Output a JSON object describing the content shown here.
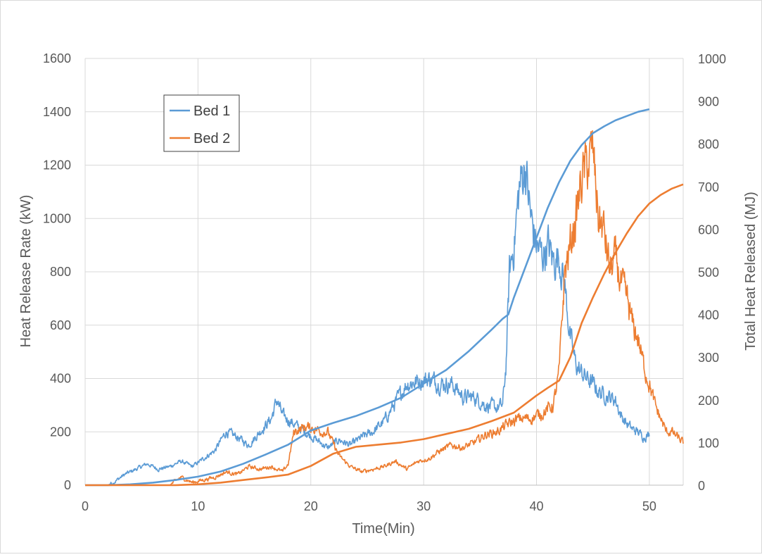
{
  "chart_data": {
    "type": "line",
    "x_label": "Time(Min)",
    "y_label_left": "Heat Release Rate (kW)",
    "y_label_right": "Total Heat Released (MJ)",
    "x_ticks": [
      0,
      10,
      20,
      30,
      40,
      50
    ],
    "y_left_ticks": [
      0,
      200,
      400,
      600,
      800,
      1000,
      1200,
      1400,
      1600
    ],
    "y_right_ticks": [
      0,
      100,
      200,
      300,
      400,
      500,
      600,
      700,
      800,
      900,
      1000
    ],
    "xlim": [
      0,
      53
    ],
    "ylim_left": [
      0,
      1600
    ],
    "ylim_right": [
      0,
      1000
    ],
    "grid": true,
    "legend_position": "upper-left",
    "series": [
      {
        "name": "Bed 1",
        "color": "#5b9bd5",
        "axis": "left",
        "kind": "hrr",
        "x": [
          0,
          2,
          2.5,
          3.5,
          4.5,
          5.5,
          6.5,
          7.5,
          8.5,
          9.5,
          10.5,
          11.5,
          12.5,
          13.5,
          14.5,
          15.5,
          16.5,
          17,
          17.5,
          18.5,
          19.5,
          20.5,
          21.5,
          22.5,
          23.5,
          24.5,
          25.5,
          26.5,
          27.5,
          28.5,
          29.5,
          30.5,
          31.5,
          32.5,
          33.5,
          34.5,
          35.5,
          36.5,
          37,
          37.3,
          37.6,
          38,
          38.5,
          39,
          39.5,
          40,
          40.5,
          41,
          41.5,
          42,
          42.5,
          43,
          43.5,
          44,
          44.5,
          45,
          45.5,
          46,
          46.5,
          47,
          47.5,
          48,
          48.5,
          49,
          49.5,
          50
        ],
        "y": [
          0,
          0,
          10,
          40,
          60,
          80,
          60,
          70,
          90,
          70,
          100,
          130,
          200,
          180,
          150,
          200,
          250,
          320,
          260,
          230,
          200,
          170,
          140,
          170,
          150,
          180,
          200,
          240,
          310,
          380,
          390,
          400,
          380,
          380,
          330,
          330,
          300,
          290,
          300,
          450,
          800,
          900,
          1120,
          1200,
          1000,
          900,
          860,
          900,
          840,
          860,
          750,
          550,
          450,
          420,
          400,
          380,
          350,
          340,
          330,
          320,
          260,
          230,
          210,
          200,
          180,
          190
        ]
      },
      {
        "name": "Bed 2",
        "color": "#ed7d31",
        "axis": "left",
        "kind": "hrr",
        "x": [
          0,
          7.5,
          8.5,
          9.5,
          10.5,
          11.5,
          12.5,
          13.5,
          14.5,
          15.5,
          16.5,
          17.5,
          18,
          18.5,
          19.5,
          20.5,
          21,
          21.5,
          22.5,
          23.5,
          24.5,
          25.5,
          26.5,
          27.5,
          28.5,
          29.5,
          30.5,
          31.5,
          32.5,
          33.5,
          34.5,
          35.5,
          36.5,
          37.5,
          38.5,
          39.5,
          40.5,
          41.5,
          42,
          42.5,
          43,
          43.5,
          44,
          44.5,
          45,
          45.5,
          46,
          46.5,
          47,
          47.5,
          48,
          48.5,
          49,
          49.5,
          50,
          50.5,
          51,
          51.5,
          52,
          52.5,
          53
        ],
        "y": [
          0,
          0,
          30,
          10,
          20,
          30,
          50,
          40,
          70,
          60,
          70,
          50,
          80,
          200,
          220,
          210,
          200,
          200,
          110,
          70,
          50,
          60,
          70,
          90,
          60,
          90,
          100,
          130,
          150,
          140,
          160,
          190,
          200,
          230,
          250,
          250,
          270,
          300,
          420,
          800,
          900,
          1000,
          1150,
          1200,
          1250,
          1000,
          950,
          800,
          850,
          750,
          700,
          600,
          550,
          450,
          380,
          300,
          250,
          200,
          200,
          180,
          160
        ]
      },
      {
        "name": "Bed 1",
        "color": "#5b9bd5",
        "axis": "right",
        "kind": "thr",
        "x": [
          0,
          2,
          4,
          6,
          8,
          10,
          12,
          14,
          16,
          18,
          20,
          22,
          24,
          26,
          28,
          30,
          32,
          34,
          36,
          37,
          37.5,
          38,
          39,
          40,
          41,
          42,
          43,
          44,
          45,
          46,
          47,
          48,
          49,
          50
        ],
        "y": [
          0,
          0,
          2,
          6,
          12,
          20,
          32,
          50,
          72,
          95,
          128,
          146,
          162,
          182,
          205,
          238,
          270,
          314,
          364,
          390,
          400,
          440,
          510,
          580,
          650,
          710,
          760,
          797,
          825,
          841,
          855,
          865,
          875,
          881
        ]
      },
      {
        "name": "Bed 2",
        "color": "#ed7d31",
        "axis": "right",
        "kind": "thr",
        "x": [
          0,
          8,
          10,
          12,
          14,
          16,
          18,
          20,
          22,
          24,
          26,
          28,
          30,
          32,
          34,
          36,
          38,
          40,
          41,
          42,
          43,
          44,
          45,
          46,
          47,
          48,
          49,
          50,
          51,
          52,
          53
        ],
        "y": [
          0,
          0,
          2,
          6,
          12,
          18,
          25,
          45,
          74,
          90,
          95,
          100,
          108,
          120,
          132,
          150,
          170,
          210,
          228,
          245,
          300,
          380,
          440,
          495,
          545,
          590,
          630,
          660,
          680,
          695,
          705
        ]
      }
    ]
  }
}
